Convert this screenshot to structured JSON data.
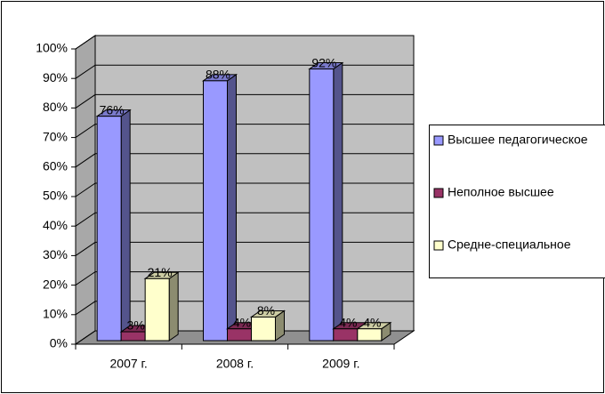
{
  "chart_data": {
    "type": "bar3d",
    "categories": [
      "2007 г.",
      "2008 г.",
      "2009 г."
    ],
    "series": [
      {
        "name": "Высшее педагогическое",
        "color": "#9999ff",
        "values": [
          76,
          88,
          92
        ],
        "value_labels": [
          "76%",
          "88%",
          "92%"
        ]
      },
      {
        "name": "Неполное высшее",
        "color": "#993366",
        "values": [
          3,
          4,
          4
        ],
        "value_labels": [
          "3%",
          "4%",
          "4%"
        ]
      },
      {
        "name": "Средне-специальное",
        "color": "#ffffcc",
        "values": [
          21,
          8,
          4
        ],
        "value_labels": [
          "21%",
          "8%",
          "4%"
        ]
      }
    ],
    "ylim": [
      0,
      100
    ],
    "yticks": [
      {
        "value": 0,
        "label": "0%"
      },
      {
        "value": 10,
        "label": "10%"
      },
      {
        "value": 20,
        "label": "20%"
      },
      {
        "value": 30,
        "label": "30%"
      },
      {
        "value": 40,
        "label": "40%"
      },
      {
        "value": 50,
        "label": "50%"
      },
      {
        "value": 60,
        "label": "60%"
      },
      {
        "value": 70,
        "label": "70%"
      },
      {
        "value": 80,
        "label": "80%"
      },
      {
        "value": 90,
        "label": "90%"
      },
      {
        "value": 100,
        "label": "100%"
      }
    ],
    "grid": true,
    "legend": "right"
  }
}
